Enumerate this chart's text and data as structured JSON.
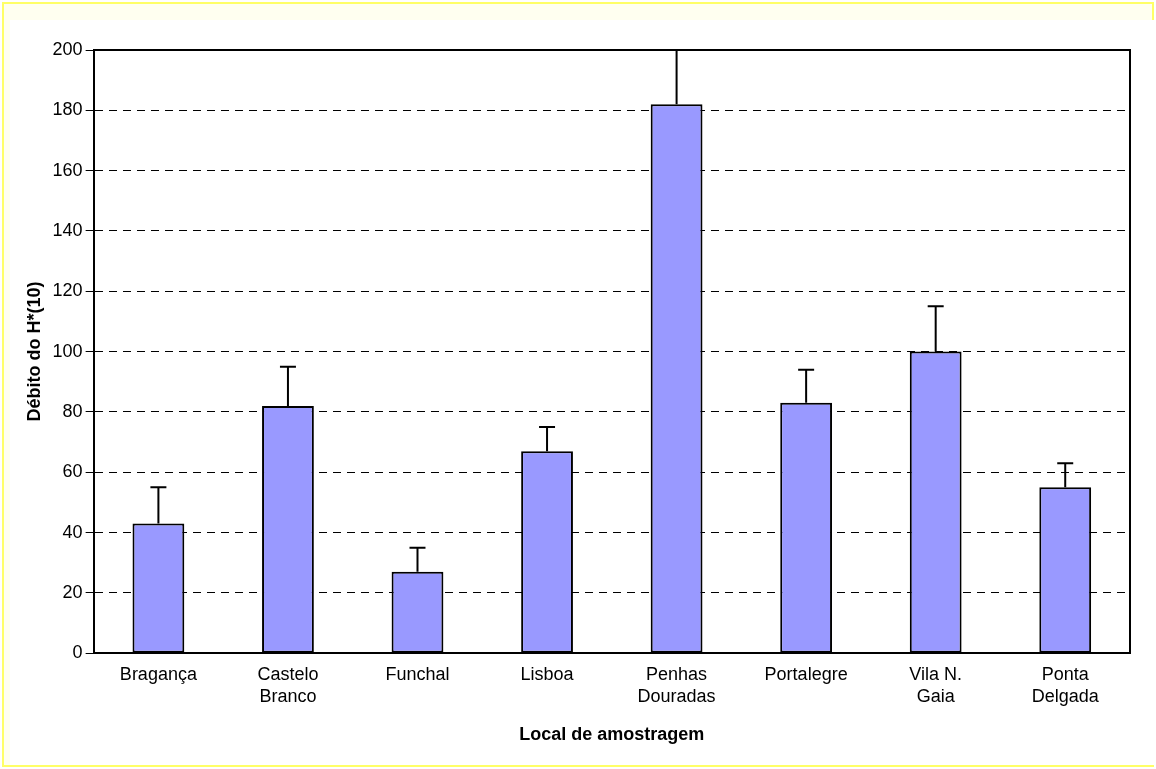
{
  "chart_data": {
    "type": "bar",
    "xlabel": "Local de amostragem",
    "ylabel": "Débito do H*(10)",
    "categories": [
      "Bragança",
      "Castelo Branco",
      "Funchal",
      "Lisboa",
      "Penhas Douradas",
      "Portalegre",
      "Vila N. Gaia",
      "Ponta Delgada"
    ],
    "values": [
      43,
      82,
      27,
      67,
      182,
      83,
      100,
      55
    ],
    "errors": [
      [
        43,
        55
      ],
      [
        82,
        95
      ],
      [
        27,
        35
      ],
      [
        67,
        75
      ],
      [
        182,
        200
      ],
      [
        83,
        94
      ],
      [
        100,
        115
      ],
      [
        55,
        63
      ]
    ],
    "color": "#9999ff",
    "ylim": [
      0,
      200
    ],
    "yticks": [
      0,
      20,
      40,
      60,
      80,
      100,
      120,
      140,
      160,
      180,
      200
    ],
    "grid": "y",
    "legend": false
  }
}
